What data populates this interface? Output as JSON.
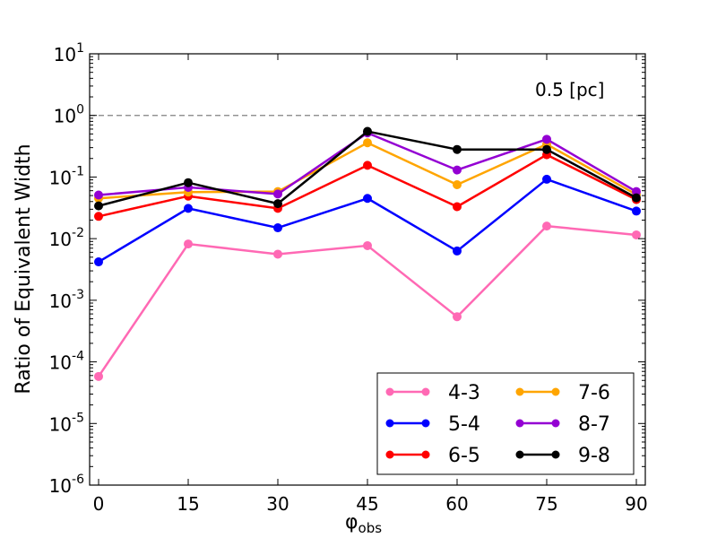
{
  "chart_data": {
    "type": "line",
    "title": "",
    "xlabel": "φ",
    "xlabel_sub": "obs",
    "ylabel": "Ratio of Equivalent Width",
    "yscale": "log",
    "x": [
      0,
      15,
      30,
      45,
      60,
      75,
      90
    ],
    "x_ticks": [
      "0",
      "15",
      "30",
      "45",
      "60",
      "75",
      "90"
    ],
    "xlim": [
      -1.5,
      91.5
    ],
    "ylim_exp": [
      -6,
      1
    ],
    "y_tick_exponents": [
      "-6",
      "-5",
      "-4",
      "-3",
      "-2",
      "-1",
      "0",
      "1"
    ],
    "reference_line": {
      "value": 1.0,
      "style": "dashed",
      "color": "#808080"
    },
    "annotation": "0.5 [pc]",
    "legend_position": "lower-right",
    "legend_columns": 2,
    "series": [
      {
        "name": "4-3",
        "color": "#ff69b4",
        "values": [
          5.8e-05,
          0.0082,
          0.0056,
          0.0077,
          0.00054,
          0.016,
          0.0115
        ]
      },
      {
        "name": "5-4",
        "color": "#0000ff",
        "values": [
          0.0042,
          0.031,
          0.015,
          0.045,
          0.0063,
          0.092,
          0.028
        ]
      },
      {
        "name": "6-5",
        "color": "#ff0000",
        "values": [
          0.023,
          0.049,
          0.031,
          0.155,
          0.033,
          0.23,
          0.043
        ]
      },
      {
        "name": "7-6",
        "color": "#ffa500",
        "values": [
          0.045,
          0.057,
          0.058,
          0.36,
          0.075,
          0.34,
          0.052
        ]
      },
      {
        "name": "8-7",
        "color": "#9400d3",
        "values": [
          0.051,
          0.068,
          0.053,
          0.52,
          0.13,
          0.41,
          0.058
        ]
      },
      {
        "name": "9-8",
        "color": "#000000",
        "values": [
          0.034,
          0.081,
          0.037,
          0.55,
          0.28,
          0.28,
          0.046
        ]
      }
    ]
  }
}
